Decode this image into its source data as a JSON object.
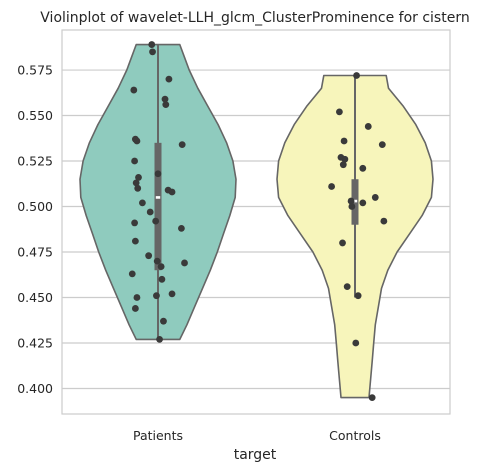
{
  "chart_data": {
    "type": "violin",
    "title": "Violinplot of wavelet-LLH_glcm_ClusterProminence for cistern",
    "xlabel": "target",
    "ylabel": "",
    "ylim": [
      0.386,
      0.597
    ],
    "yticks": [
      0.4,
      0.425,
      0.45,
      0.475,
      0.5,
      0.525,
      0.55,
      0.575
    ],
    "ytick_labels": [
      "0.400",
      "0.425",
      "0.450",
      "0.475",
      "0.500",
      "0.525",
      "0.550",
      "0.575"
    ],
    "grid": true,
    "series": [
      {
        "name": "Patients",
        "color": "#8fcbbe",
        "min": 0.427,
        "max": 0.589,
        "q1": 0.465,
        "median": 0.505,
        "q3": 0.535,
        "whisker_low": 0.427,
        "whisker_high": 0.589,
        "density": [
          [
            0.427,
            0.28
          ],
          [
            0.435,
            0.37
          ],
          [
            0.445,
            0.47
          ],
          [
            0.455,
            0.57
          ],
          [
            0.465,
            0.67
          ],
          [
            0.475,
            0.76
          ],
          [
            0.485,
            0.84
          ],
          [
            0.495,
            0.92
          ],
          [
            0.505,
            0.99
          ],
          [
            0.515,
            1.0
          ],
          [
            0.525,
            0.96
          ],
          [
            0.535,
            0.88
          ],
          [
            0.545,
            0.77
          ],
          [
            0.555,
            0.64
          ],
          [
            0.565,
            0.51
          ],
          [
            0.575,
            0.4
          ],
          [
            0.582,
            0.34
          ],
          [
            0.589,
            0.28
          ]
        ],
        "points": [
          [
            0.589,
            -0.08
          ],
          [
            0.585,
            -0.07
          ],
          [
            0.57,
            0.14
          ],
          [
            0.564,
            -0.31
          ],
          [
            0.559,
            0.09
          ],
          [
            0.556,
            0.1
          ],
          [
            0.537,
            -0.29
          ],
          [
            0.536,
            -0.27
          ],
          [
            0.534,
            0.31
          ],
          [
            0.525,
            -0.3
          ],
          [
            0.518,
            0.0
          ],
          [
            0.516,
            -0.25
          ],
          [
            0.513,
            -0.28
          ],
          [
            0.51,
            -0.26
          ],
          [
            0.509,
            0.13
          ],
          [
            0.508,
            0.18
          ],
          [
            0.502,
            -0.2
          ],
          [
            0.497,
            -0.1
          ],
          [
            0.492,
            -0.03
          ],
          [
            0.491,
            -0.3
          ],
          [
            0.488,
            0.3
          ],
          [
            0.481,
            -0.29
          ],
          [
            0.473,
            -0.12
          ],
          [
            0.47,
            -0.01
          ],
          [
            0.469,
            0.34
          ],
          [
            0.467,
            0.04
          ],
          [
            0.463,
            -0.33
          ],
          [
            0.46,
            0.05
          ],
          [
            0.452,
            0.18
          ],
          [
            0.451,
            -0.02
          ],
          [
            0.45,
            -0.27
          ],
          [
            0.444,
            -0.29
          ],
          [
            0.437,
            0.07
          ],
          [
            0.427,
            0.02
          ]
        ]
      },
      {
        "name": "Controls",
        "color": "#f7f5bb",
        "min": 0.395,
        "max": 0.572,
        "q1": 0.49,
        "median": 0.503,
        "q3": 0.515,
        "whisker_low": 0.45,
        "whisker_high": 0.572,
        "density": [
          [
            0.395,
            0.18
          ],
          [
            0.405,
            0.2
          ],
          [
            0.415,
            0.22
          ],
          [
            0.425,
            0.24
          ],
          [
            0.435,
            0.26
          ],
          [
            0.445,
            0.3
          ],
          [
            0.455,
            0.34
          ],
          [
            0.465,
            0.42
          ],
          [
            0.475,
            0.54
          ],
          [
            0.485,
            0.7
          ],
          [
            0.495,
            0.86
          ],
          [
            0.505,
            0.98
          ],
          [
            0.515,
            1.0
          ],
          [
            0.525,
            0.98
          ],
          [
            0.535,
            0.9
          ],
          [
            0.545,
            0.78
          ],
          [
            0.555,
            0.62
          ],
          [
            0.565,
            0.43
          ],
          [
            0.572,
            0.4
          ]
        ],
        "points": [
          [
            0.572,
            0.02
          ],
          [
            0.552,
            -0.2
          ],
          [
            0.544,
            0.17
          ],
          [
            0.536,
            -0.14
          ],
          [
            0.534,
            0.35
          ],
          [
            0.527,
            -0.18
          ],
          [
            0.526,
            -0.13
          ],
          [
            0.523,
            -0.15
          ],
          [
            0.521,
            0.1
          ],
          [
            0.511,
            -0.3
          ],
          [
            0.505,
            0.26
          ],
          [
            0.503,
            -0.05
          ],
          [
            0.502,
            0.1
          ],
          [
            0.5,
            -0.04
          ],
          [
            0.492,
            0.37
          ],
          [
            0.48,
            -0.16
          ],
          [
            0.456,
            -0.1
          ],
          [
            0.451,
            0.04
          ],
          [
            0.425,
            0.01
          ],
          [
            0.395,
            0.22
          ]
        ]
      }
    ]
  }
}
